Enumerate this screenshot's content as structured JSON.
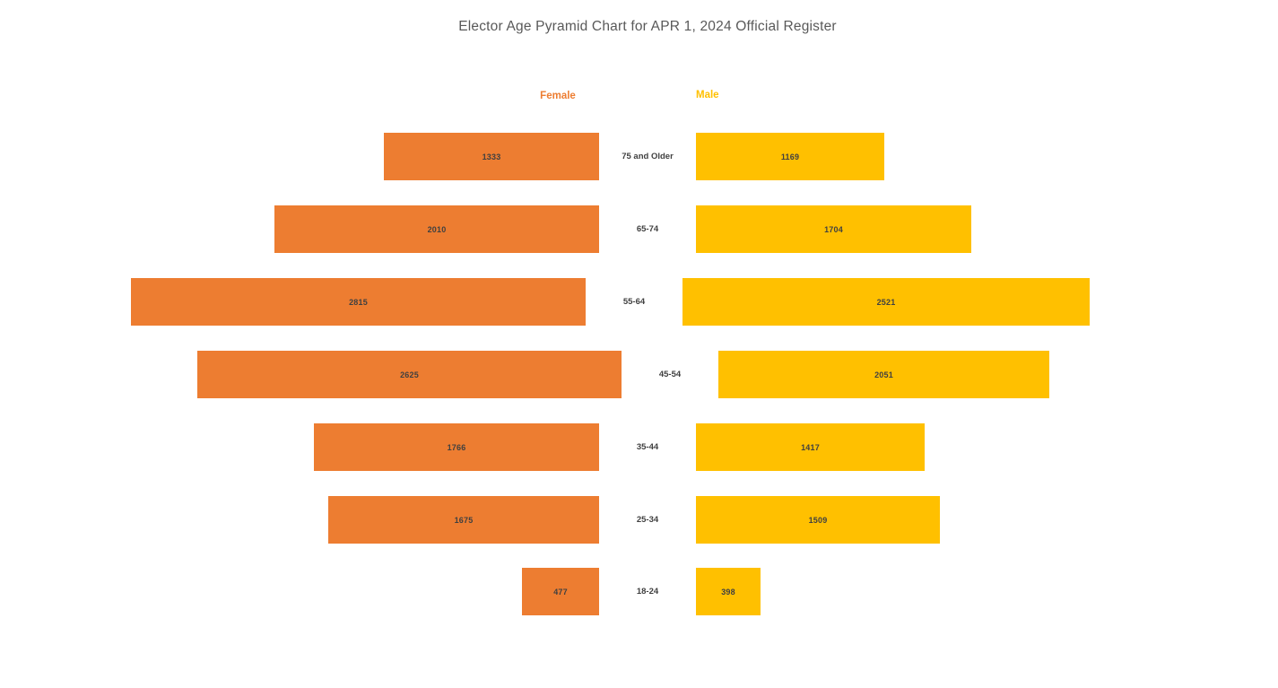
{
  "title": "Elector Age Pyramid Chart for APR 1, 2024 Official Register",
  "chart_data": {
    "type": "bar",
    "subtype": "population-pyramid",
    "orientation": "horizontal",
    "categories": [
      "75 and Older",
      "65-74",
      "55-64",
      "45-54",
      "35-44",
      "25-34",
      "18-24"
    ],
    "series": [
      {
        "name": "Female",
        "color": "#ED7D31",
        "values": [
          1333,
          2010,
          2815,
          2625,
          1766,
          1675,
          477
        ]
      },
      {
        "name": "Male",
        "color": "#FFC000",
        "values": [
          1169,
          1704,
          2521,
          2051,
          1417,
          1509,
          398
        ]
      }
    ],
    "value_labels_shown": true,
    "legend_position": "top-center",
    "axis_shown": false,
    "grid": false
  },
  "colors": {
    "female": "#ED7D31",
    "male": "#FFC000",
    "title_text": "#595959",
    "label_text": "#404040",
    "background": "#FFFFFF"
  }
}
